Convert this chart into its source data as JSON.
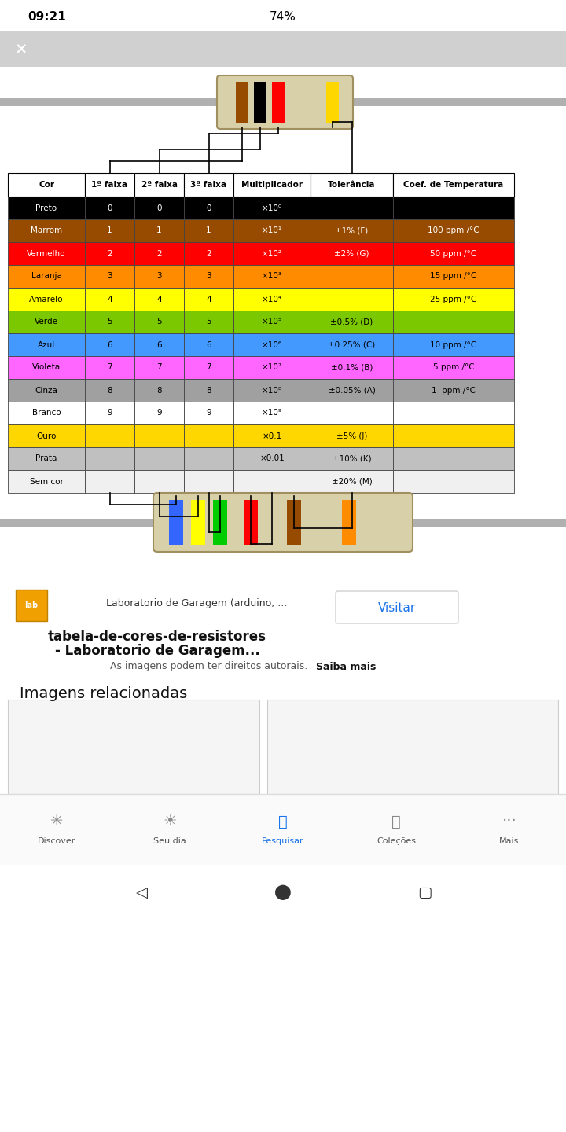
{
  "columns": [
    "Cor",
    "1ª faixa",
    "2ª faixa",
    "3ª faixa",
    "Multiplicador",
    "Tolerância",
    "Coef. de Temperatura"
  ],
  "rows": [
    {
      "name": "Preto",
      "faixa1": "0",
      "faixa2": "0",
      "faixa3": "0",
      "mult": "×10⁰",
      "tol": "",
      "coef": "",
      "bg": "#000000",
      "fg": "#ffffff"
    },
    {
      "name": "Marrom",
      "faixa1": "1",
      "faixa2": "1",
      "faixa3": "1",
      "mult": "×10¹",
      "tol": "±1% (F)",
      "coef": "100 ppm /°C",
      "bg": "#964B00",
      "fg": "#ffffff"
    },
    {
      "name": "Vermelho",
      "faixa1": "2",
      "faixa2": "2",
      "faixa3": "2",
      "mult": "×10²",
      "tol": "±2% (G)",
      "coef": "50 ppm /°C",
      "bg": "#FF0000",
      "fg": "#ffffff"
    },
    {
      "name": "Laranja",
      "faixa1": "3",
      "faixa2": "3",
      "faixa3": "3",
      "mult": "×10³",
      "tol": "",
      "coef": "15 ppm /°C",
      "bg": "#FF8C00",
      "fg": "#000000"
    },
    {
      "name": "Amarelo",
      "faixa1": "4",
      "faixa2": "4",
      "faixa3": "4",
      "mult": "×10⁴",
      "tol": "",
      "coef": "25 ppm /°C",
      "bg": "#FFFF00",
      "fg": "#000000"
    },
    {
      "name": "Verde",
      "faixa1": "5",
      "faixa2": "5",
      "faixa3": "5",
      "mult": "×10⁵",
      "tol": "±0.5% (D)",
      "coef": "",
      "bg": "#7BC800",
      "fg": "#000000"
    },
    {
      "name": "Azul",
      "faixa1": "6",
      "faixa2": "6",
      "faixa3": "6",
      "mult": "×10⁶",
      "tol": "±0.25% (C)",
      "coef": "10 ppm /°C",
      "bg": "#4499FF",
      "fg": "#000000"
    },
    {
      "name": "Violeta",
      "faixa1": "7",
      "faixa2": "7",
      "faixa3": "7",
      "mult": "×10⁷",
      "tol": "±0.1% (B)",
      "coef": "5 ppm /°C",
      "bg": "#FF66FF",
      "fg": "#000000"
    },
    {
      "name": "Cinza",
      "faixa1": "8",
      "faixa2": "8",
      "faixa3": "8",
      "mult": "×10⁸",
      "tol": "±0.05% (A)",
      "coef": "1  ppm /°C",
      "bg": "#A0A0A0",
      "fg": "#000000"
    },
    {
      "name": "Branco",
      "faixa1": "9",
      "faixa2": "9",
      "faixa3": "9",
      "mult": "×10⁹",
      "tol": "",
      "coef": "",
      "bg": "#FFFFFF",
      "fg": "#000000"
    },
    {
      "name": "Ouro",
      "faixa1": "",
      "faixa2": "",
      "faixa3": "",
      "mult": "×0.1",
      "tol": "±5% (J)",
      "coef": "",
      "bg": "#FFD700",
      "fg": "#000000"
    },
    {
      "name": "Prata",
      "faixa1": "",
      "faixa2": "",
      "faixa3": "",
      "mult": "×0.01",
      "tol": "±10% (K)",
      "coef": "",
      "bg": "#C0C0C0",
      "fg": "#000000"
    },
    {
      "name": "Sem cor",
      "faixa1": "",
      "faixa2": "",
      "faixa3": "",
      "mult": "",
      "tol": "±20% (M)",
      "coef": "",
      "bg": "#F0F0F0",
      "fg": "#000000"
    }
  ],
  "bg_color": "#FFFFFF",
  "phone_status_bg": "#FFFFFF",
  "bottom_ui_bg": "#FFFFFF",
  "top_resistor_bands": [
    "#964B00",
    "#000000",
    "#FF0000",
    "#FFD700"
  ],
  "bottom_resistor_bands": [
    "#3366FF",
    "#FFFF00",
    "#00CC00",
    "#FF0000",
    "#964B00",
    "#FF8C00"
  ],
  "font_size": 7.5
}
